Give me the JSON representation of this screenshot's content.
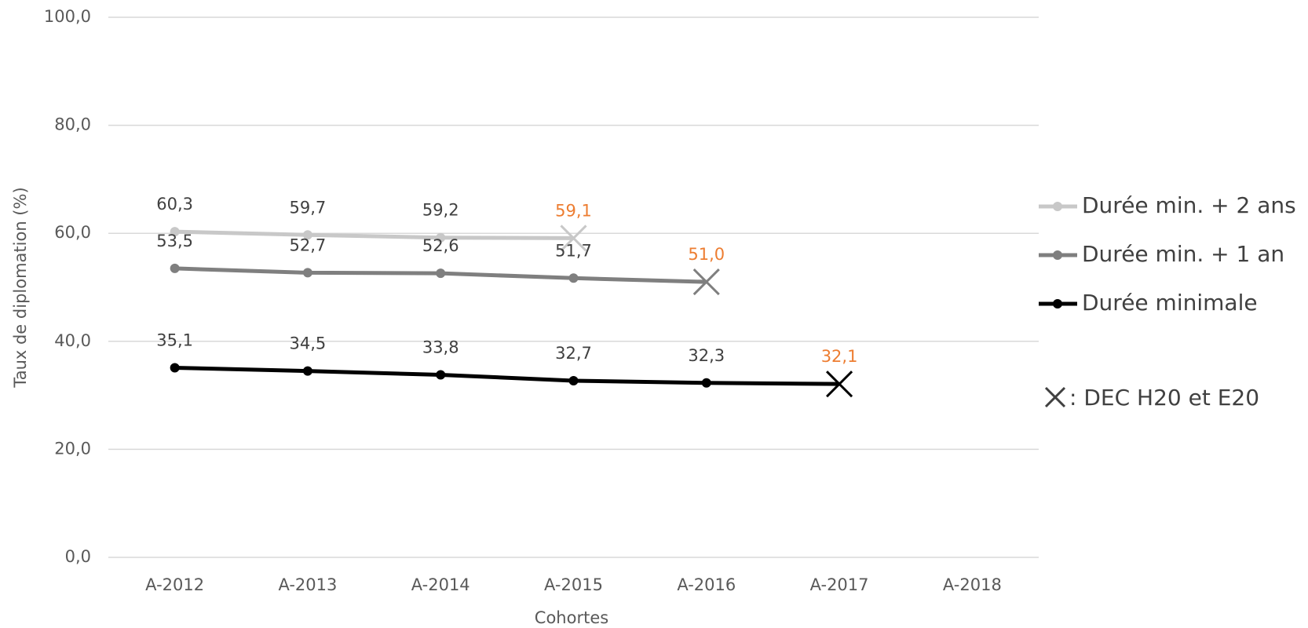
{
  "chart_data": {
    "type": "line",
    "x_label": "Cohortes",
    "y_label": "Taux de diplomation (%)",
    "categories": [
      "A-2012",
      "A-2013",
      "A-2014",
      "A-2015",
      "A-2016",
      "A-2017",
      "A-2018"
    ],
    "series": [
      {
        "name": "Durée min. + 2 ans",
        "color": "#c8c8c8",
        "values": [
          60.3,
          59.7,
          59.2,
          59.1,
          null,
          null,
          null
        ],
        "value_labels": [
          "60,3",
          "59,7",
          "59,2",
          "59,1",
          null,
          null,
          null
        ]
      },
      {
        "name": "Durée min. + 1 an",
        "color": "#7f7f7f",
        "values": [
          53.5,
          52.7,
          52.6,
          51.7,
          51.0,
          null,
          null
        ],
        "value_labels": [
          "53,5",
          "52,7",
          "52,6",
          "51,7",
          "51,0",
          null,
          null
        ]
      },
      {
        "name": "Durée minimale",
        "color": "#000000",
        "values": [
          35.1,
          34.5,
          33.8,
          32.7,
          32.3,
          32.1,
          null
        ],
        "value_labels": [
          "35,1",
          "34,5",
          "33,8",
          "32,7",
          "32,3",
          "32,1",
          null
        ]
      }
    ],
    "last_point_marker": "x",
    "last_label_color": "#ed7d31",
    "annotation": ": DEC H20 et E20",
    "ylim": [
      0,
      100
    ],
    "yticks": [
      {
        "value": 0,
        "label": "0,0"
      },
      {
        "value": 20,
        "label": "20,0"
      },
      {
        "value": 40,
        "label": "40,0"
      },
      {
        "value": 60,
        "label": "60,0"
      },
      {
        "value": 80,
        "label": "80,0"
      },
      {
        "value": 100,
        "label": "100,0"
      }
    ],
    "grid": true,
    "legend": "right"
  }
}
